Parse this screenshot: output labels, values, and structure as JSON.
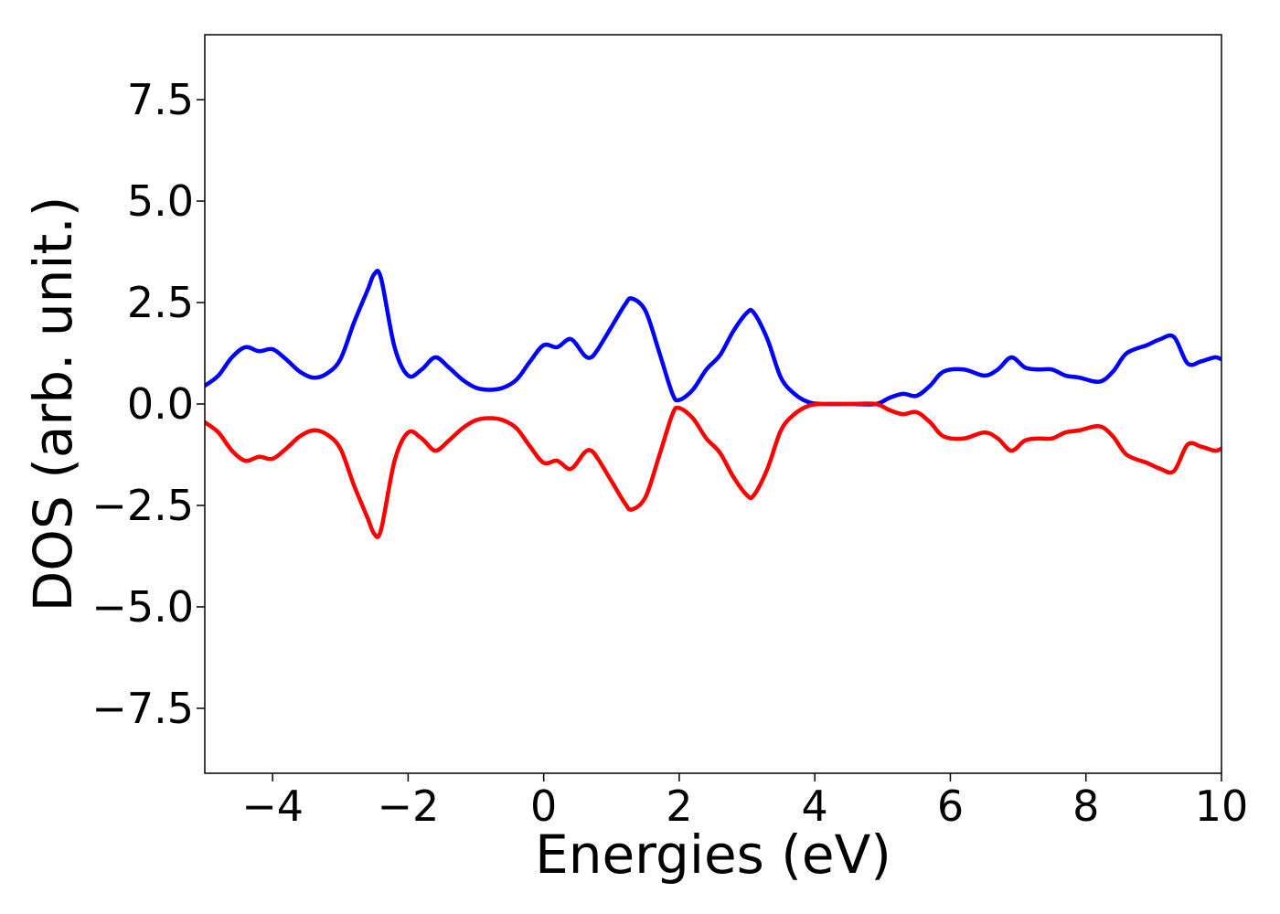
{
  "chart_data": {
    "type": "line",
    "title": "",
    "xlabel": "Energies (eV)",
    "ylabel": "DOS (arb. unit.)",
    "xlim": [
      -5,
      10
    ],
    "ylim": [
      -9.1,
      9.1
    ],
    "xticks": [
      -4,
      -2,
      0,
      2,
      4,
      6,
      8,
      10
    ],
    "xtick_labels": [
      "−4",
      "−2",
      "0",
      "2",
      "4",
      "6",
      "8",
      "10"
    ],
    "yticks": [
      7.5,
      5.0,
      2.5,
      0.0,
      -2.5,
      -5.0,
      -7.5
    ],
    "ytick_labels": [
      "7.5",
      "5.0",
      "2.5",
      "0.0",
      "−2.5",
      "−5.0",
      "−7.5"
    ],
    "grid": false,
    "legend": "none",
    "series": [
      {
        "color": "#0000ff",
        "x": [
          -5.0,
          -4.8,
          -4.6,
          -4.4,
          -4.2,
          -4.0,
          -3.8,
          -3.6,
          -3.4,
          -3.2,
          -3.0,
          -2.8,
          -2.6,
          -2.5,
          -2.4,
          -2.2,
          -2.0,
          -1.8,
          -1.6,
          -1.4,
          -1.2,
          -1.0,
          -0.8,
          -0.6,
          -0.4,
          -0.2,
          0.0,
          0.2,
          0.4,
          0.6,
          0.7,
          0.8,
          1.0,
          1.2,
          1.3,
          1.5,
          1.7,
          1.9,
          2.0,
          2.2,
          2.4,
          2.6,
          2.8,
          3.0,
          3.1,
          3.3,
          3.5,
          3.7,
          3.9,
          4.1,
          4.5,
          4.9,
          5.1,
          5.3,
          5.5,
          5.7,
          5.9,
          6.2,
          6.5,
          6.7,
          6.9,
          7.1,
          7.3,
          7.5,
          7.7,
          7.9,
          8.2,
          8.4,
          8.6,
          8.9,
          9.1,
          9.3,
          9.5,
          9.7,
          9.9,
          10.0
        ],
        "y": [
          0.45,
          0.7,
          1.15,
          1.4,
          1.3,
          1.35,
          1.1,
          0.8,
          0.65,
          0.75,
          1.1,
          2.0,
          2.8,
          3.2,
          3.1,
          1.4,
          0.7,
          0.85,
          1.15,
          0.9,
          0.6,
          0.4,
          0.35,
          0.4,
          0.6,
          1.05,
          1.45,
          1.4,
          1.6,
          1.2,
          1.15,
          1.35,
          1.9,
          2.45,
          2.6,
          2.3,
          1.3,
          0.25,
          0.1,
          0.35,
          0.85,
          1.2,
          1.8,
          2.25,
          2.25,
          1.6,
          0.65,
          0.25,
          0.05,
          0.0,
          0.0,
          0.0,
          0.15,
          0.25,
          0.2,
          0.45,
          0.8,
          0.85,
          0.7,
          0.85,
          1.15,
          0.9,
          0.85,
          0.85,
          0.7,
          0.65,
          0.55,
          0.8,
          1.25,
          1.45,
          1.6,
          1.65,
          1.0,
          1.05,
          1.15,
          1.1
        ]
      },
      {
        "color": "#ff0000",
        "x": [
          -5.0,
          -4.8,
          -4.6,
          -4.4,
          -4.2,
          -4.0,
          -3.8,
          -3.6,
          -3.4,
          -3.2,
          -3.0,
          -2.8,
          -2.6,
          -2.5,
          -2.4,
          -2.2,
          -2.0,
          -1.8,
          -1.6,
          -1.4,
          -1.2,
          -1.0,
          -0.8,
          -0.6,
          -0.4,
          -0.2,
          0.0,
          0.2,
          0.4,
          0.6,
          0.7,
          0.8,
          1.0,
          1.2,
          1.3,
          1.5,
          1.7,
          1.9,
          2.0,
          2.2,
          2.4,
          2.6,
          2.8,
          3.0,
          3.1,
          3.3,
          3.5,
          3.7,
          3.9,
          4.1,
          4.5,
          4.9,
          5.1,
          5.3,
          5.5,
          5.7,
          5.9,
          6.2,
          6.5,
          6.7,
          6.9,
          7.1,
          7.3,
          7.5,
          7.7,
          7.9,
          8.2,
          8.4,
          8.6,
          8.9,
          9.1,
          9.3,
          9.5,
          9.7,
          9.9,
          10.0
        ],
        "y": [
          -0.45,
          -0.7,
          -1.15,
          -1.4,
          -1.3,
          -1.35,
          -1.1,
          -0.8,
          -0.65,
          -0.75,
          -1.1,
          -2.0,
          -2.8,
          -3.2,
          -3.1,
          -1.4,
          -0.7,
          -0.85,
          -1.15,
          -0.9,
          -0.6,
          -0.4,
          -0.35,
          -0.4,
          -0.6,
          -1.05,
          -1.45,
          -1.4,
          -1.6,
          -1.2,
          -1.15,
          -1.35,
          -1.9,
          -2.45,
          -2.6,
          -2.3,
          -1.3,
          -0.25,
          -0.1,
          -0.35,
          -0.85,
          -1.2,
          -1.8,
          -2.25,
          -2.25,
          -1.6,
          -0.65,
          -0.25,
          -0.05,
          0.0,
          0.0,
          0.0,
          -0.15,
          -0.25,
          -0.2,
          -0.45,
          -0.8,
          -0.85,
          -0.7,
          -0.85,
          -1.15,
          -0.9,
          -0.85,
          -0.85,
          -0.7,
          -0.65,
          -0.55,
          -0.8,
          -1.25,
          -1.45,
          -1.6,
          -1.65,
          -1.0,
          -1.05,
          -1.15,
          -1.1
        ]
      }
    ]
  }
}
